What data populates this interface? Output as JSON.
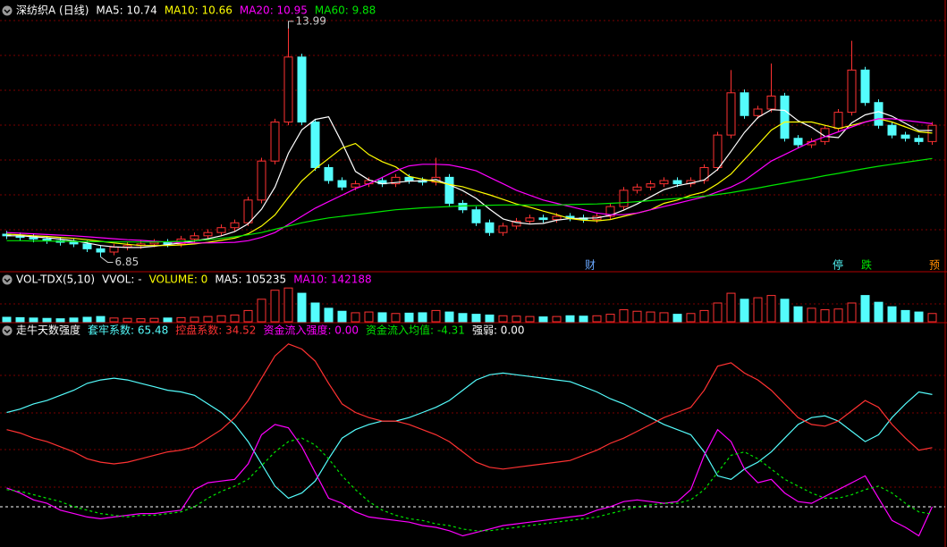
{
  "chart_data": [
    {
      "type": "candlestick",
      "title": "深纺织A (日线)",
      "open": [
        7.55,
        7.5,
        7.45,
        7.4,
        7.35,
        7.3,
        7.25,
        7.1,
        7.0,
        7.15,
        7.2,
        7.25,
        7.3,
        7.25,
        7.4,
        7.5,
        7.6,
        7.75,
        7.9,
        8.6,
        9.8,
        11.0,
        13.0,
        11.0,
        9.6,
        9.2,
        9.0,
        9.1,
        9.2,
        9.1,
        9.3,
        9.2,
        9.15,
        9.3,
        8.5,
        8.3,
        7.9,
        7.6,
        7.8,
        7.95,
        8.05,
        8.0,
        8.1,
        8.05,
        8.0,
        8.1,
        8.4,
        8.9,
        9.0,
        9.1,
        9.2,
        9.1,
        9.2,
        9.6,
        10.6,
        11.9,
        11.2,
        11.4,
        11.8,
        10.5,
        10.3,
        10.4,
        10.8,
        11.3,
        12.6,
        11.6,
        10.9,
        10.6,
        10.5,
        10.4
      ],
      "high": [
        7.65,
        7.6,
        7.55,
        7.5,
        7.45,
        7.4,
        7.35,
        7.2,
        7.25,
        7.3,
        7.35,
        7.4,
        7.4,
        7.5,
        7.6,
        7.7,
        7.85,
        8.0,
        8.7,
        9.9,
        11.1,
        13.99,
        13.1,
        11.1,
        9.7,
        9.3,
        9.2,
        9.3,
        9.3,
        9.4,
        9.4,
        9.3,
        9.9,
        9.4,
        8.6,
        8.4,
        8.0,
        7.9,
        8.05,
        8.15,
        8.15,
        8.2,
        8.2,
        8.15,
        8.2,
        8.5,
        9.0,
        9.1,
        9.2,
        9.3,
        9.3,
        9.3,
        9.7,
        10.7,
        12.6,
        12.0,
        11.5,
        12.8,
        11.9,
        10.6,
        10.5,
        10.9,
        11.4,
        13.5,
        12.7,
        11.7,
        11.0,
        10.7,
        10.6,
        11.0
      ],
      "low": [
        7.4,
        7.35,
        7.3,
        7.25,
        7.2,
        7.15,
        7.0,
        6.85,
        6.9,
        7.05,
        7.1,
        7.15,
        7.15,
        7.15,
        7.3,
        7.4,
        7.5,
        7.65,
        7.8,
        8.5,
        9.7,
        10.9,
        10.9,
        9.5,
        9.1,
        8.9,
        8.9,
        9.0,
        9.0,
        9.0,
        9.1,
        9.05,
        9.05,
        8.4,
        8.2,
        7.8,
        7.5,
        7.5,
        7.7,
        7.85,
        7.9,
        7.9,
        7.95,
        7.9,
        7.9,
        8.0,
        8.3,
        8.8,
        8.9,
        9.0,
        9.0,
        9.0,
        9.1,
        9.5,
        10.5,
        11.1,
        11.1,
        11.3,
        10.4,
        10.2,
        10.2,
        10.3,
        10.7,
        11.2,
        11.5,
        10.8,
        10.5,
        10.4,
        10.3,
        10.3
      ],
      "close": [
        7.5,
        7.45,
        7.4,
        7.35,
        7.3,
        7.25,
        7.1,
        7.0,
        7.15,
        7.2,
        7.25,
        7.3,
        7.25,
        7.4,
        7.5,
        7.6,
        7.75,
        7.9,
        8.6,
        9.8,
        11.0,
        13.0,
        11.0,
        9.6,
        9.2,
        9.0,
        9.1,
        9.2,
        9.1,
        9.3,
        9.2,
        9.15,
        9.3,
        8.5,
        8.3,
        7.9,
        7.6,
        7.8,
        7.95,
        8.05,
        8.0,
        8.1,
        8.05,
        8.0,
        8.1,
        8.4,
        8.9,
        9.0,
        9.1,
        9.2,
        9.1,
        9.2,
        9.6,
        10.6,
        11.9,
        11.2,
        11.4,
        11.8,
        10.5,
        10.3,
        10.4,
        10.8,
        11.3,
        12.6,
        11.6,
        10.9,
        10.6,
        10.5,
        10.4,
        10.9
      ],
      "up_color": "#ff3232",
      "down_color": "#54fcfc",
      "series": [
        {
          "name": "MA5: 10.74",
          "color": "#ffffff",
          "values": [
            7.5,
            7.5,
            7.47,
            7.44,
            7.4,
            7.35,
            7.28,
            7.2,
            7.16,
            7.14,
            7.14,
            7.18,
            7.23,
            7.28,
            7.34,
            7.41,
            7.5,
            7.63,
            7.87,
            8.32,
            9.0,
            10.04,
            10.76,
            11.08,
            11.16,
            10.36,
            9.48,
            9.22,
            9.1,
            9.14,
            9.18,
            9.19,
            9.23,
            9.07,
            8.89,
            8.65,
            8.32,
            8.02,
            7.91,
            7.86,
            7.88,
            7.98,
            8.03,
            8.04,
            8.05,
            8.13,
            8.29,
            8.48,
            8.7,
            8.92,
            9.04,
            9.12,
            9.22,
            9.54,
            10.1,
            10.68,
            11.14,
            11.38,
            11.36,
            11.04,
            10.84,
            10.56,
            10.52,
            10.98,
            11.22,
            11.32,
            11.18,
            10.96,
            10.74,
            10.74
          ]
        },
        {
          "name": "MA10: 10.66",
          "color": "#ffff00",
          "values": [
            7.55,
            7.53,
            7.5,
            7.48,
            7.45,
            7.42,
            7.38,
            7.33,
            7.28,
            7.24,
            7.2,
            7.2,
            7.2,
            7.22,
            7.25,
            7.3,
            7.36,
            7.43,
            7.56,
            7.8,
            8.14,
            8.68,
            9.19,
            9.56,
            9.88,
            10.2,
            10.34,
            10.0,
            9.78,
            9.62,
            9.33,
            9.24,
            9.17,
            9.08,
            9.01,
            8.88,
            8.76,
            8.62,
            8.48,
            8.38,
            8.26,
            8.15,
            8.03,
            7.98,
            7.96,
            8.0,
            8.1,
            8.2,
            8.3,
            8.5,
            8.6,
            8.75,
            8.85,
            9.1,
            9.4,
            9.85,
            10.3,
            10.75,
            11.0,
            11.0,
            11.0,
            10.9,
            10.8,
            10.9,
            11.0,
            11.1,
            11.0,
            10.85,
            10.7,
            10.66
          ]
        },
        {
          "name": "MA20: 10.95",
          "color": "#ff00ff",
          "values": [
            7.6,
            7.58,
            7.56,
            7.54,
            7.52,
            7.5,
            7.47,
            7.44,
            7.41,
            7.38,
            7.36,
            7.33,
            7.31,
            7.29,
            7.28,
            7.28,
            7.29,
            7.3,
            7.35,
            7.45,
            7.6,
            7.85,
            8.1,
            8.35,
            8.55,
            8.75,
            8.95,
            9.1,
            9.3,
            9.5,
            9.65,
            9.7,
            9.7,
            9.68,
            9.6,
            9.5,
            9.3,
            9.1,
            8.9,
            8.75,
            8.6,
            8.5,
            8.4,
            8.3,
            8.2,
            8.15,
            8.15,
            8.2,
            8.3,
            8.4,
            8.5,
            8.6,
            8.7,
            8.85,
            9.0,
            9.2,
            9.5,
            9.8,
            10.0,
            10.2,
            10.4,
            10.55,
            10.7,
            10.85,
            11.0,
            11.1,
            11.1,
            11.05,
            11.0,
            10.95
          ]
        },
        {
          "name": "MA60: 9.88",
          "color": "#00e600",
          "values": [
            7.35,
            7.35,
            7.34,
            7.34,
            7.33,
            7.33,
            7.32,
            7.32,
            7.31,
            7.31,
            7.31,
            7.31,
            7.32,
            7.33,
            7.35,
            7.38,
            7.42,
            7.47,
            7.53,
            7.6,
            7.7,
            7.8,
            7.9,
            7.98,
            8.05,
            8.1,
            8.15,
            8.2,
            8.25,
            8.3,
            8.33,
            8.36,
            8.38,
            8.4,
            8.42,
            8.43,
            8.44,
            8.45,
            8.45,
            8.45,
            8.45,
            8.45,
            8.46,
            8.47,
            8.48,
            8.5,
            8.52,
            8.55,
            8.58,
            8.62,
            8.65,
            8.68,
            8.72,
            8.77,
            8.83,
            8.9,
            8.97,
            9.05,
            9.12,
            9.2,
            9.27,
            9.35,
            9.42,
            9.5,
            9.57,
            9.64,
            9.7,
            9.76,
            9.82,
            9.88
          ]
        }
      ],
      "ylim": [
        6.45,
        14.7
      ],
      "annotations": [
        {
          "text": "13.99",
          "value": 13.99,
          "at": "high"
        },
        {
          "text": "6.85",
          "value": 6.85,
          "at": "low"
        }
      ],
      "markers": [
        "财",
        "停",
        "跌",
        "预"
      ]
    },
    {
      "type": "volume",
      "title": "VOL-TDX(5,10)",
      "legend": [
        "VVOL: -",
        "VOLUME: 0",
        "MA5: 105235",
        "MA10: 142188"
      ],
      "legend_colors": [
        "#ffffff",
        "#ffff00",
        "#ffffff",
        "#ff00ff"
      ],
      "values": [
        60000,
        55000,
        50000,
        45000,
        40000,
        50000,
        60000,
        70000,
        50000,
        45000,
        40000,
        45000,
        50000,
        55000,
        60000,
        70000,
        80000,
        90000,
        150000,
        300000,
        420000,
        450000,
        380000,
        250000,
        180000,
        140000,
        120000,
        130000,
        120000,
        110000,
        115000,
        120000,
        150000,
        130000,
        110000,
        100000,
        90000,
        80000,
        75000,
        70000,
        65000,
        70000,
        80000,
        75000,
        80000,
        100000,
        160000,
        140000,
        130000,
        120000,
        100000,
        110000,
        150000,
        250000,
        380000,
        300000,
        320000,
        350000,
        300000,
        200000,
        180000,
        160000,
        170000,
        250000,
        350000,
        260000,
        200000,
        150000,
        130000,
        110000
      ],
      "ylim": [
        0,
        500000
      ]
    },
    {
      "type": "line",
      "title": "走牛天数强度",
      "series": [
        {
          "name": "套牢系数: 65.48",
          "color": "#54fcfc",
          "values": [
            55,
            57,
            60,
            62,
            65,
            68,
            72,
            74,
            75,
            74,
            72,
            70,
            68,
            67,
            65,
            60,
            55,
            48,
            38,
            25,
            12,
            5,
            8,
            15,
            28,
            40,
            45,
            48,
            50,
            50,
            52,
            55,
            58,
            62,
            68,
            74,
            77,
            78,
            77,
            76,
            75,
            74,
            73,
            70,
            67,
            63,
            60,
            56,
            52,
            48,
            45,
            42,
            32,
            18,
            16,
            22,
            26,
            32,
            40,
            48,
            52,
            53,
            50,
            44,
            38,
            42,
            52,
            60,
            67,
            65.48
          ]
        },
        {
          "name": "控盘系数: 34.52",
          "color": "#ff3232",
          "values": [
            45,
            43,
            40,
            38,
            35,
            32,
            28,
            26,
            25,
            26,
            28,
            30,
            32,
            33,
            35,
            40,
            45,
            52,
            62,
            75,
            88,
            95,
            92,
            85,
            72,
            60,
            55,
            52,
            50,
            50,
            48,
            45,
            42,
            38,
            32,
            26,
            23,
            22,
            23,
            24,
            25,
            26,
            27,
            30,
            33,
            37,
            40,
            44,
            48,
            52,
            55,
            58,
            68,
            82,
            84,
            78,
            74,
            68,
            60,
            52,
            48,
            47,
            50,
            56,
            62,
            58,
            48,
            40,
            33,
            34.52
          ]
        },
        {
          "name": "资金流入强度: 0.00",
          "color": "#ff00ff",
          "values": [
            11,
            8,
            4,
            2,
            -2,
            -4,
            -6,
            -7,
            -6,
            -5,
            -4,
            -4,
            -3,
            -2,
            10,
            14,
            15,
            16,
            25,
            42,
            48,
            46,
            35,
            20,
            5,
            2,
            -3,
            -6,
            -7,
            -8,
            -9,
            -11,
            -12,
            -14,
            -17,
            -15,
            -13,
            -11,
            -10,
            -9,
            -8,
            -7,
            -6,
            -5,
            -2,
            0,
            3,
            4,
            3,
            2,
            3,
            10,
            30,
            45,
            38,
            22,
            14,
            16,
            8,
            3,
            2,
            6,
            10,
            14,
            18,
            5,
            -8,
            -12,
            -17,
            0
          ]
        },
        {
          "name": "资金流入均值: -4.31",
          "color": "#00e600",
          "dashed": true,
          "values": [
            10,
            9,
            7,
            5,
            3,
            0,
            -2,
            -4,
            -5,
            -6,
            -5,
            -5,
            -4,
            -3,
            0,
            5,
            9,
            12,
            16,
            24,
            32,
            38,
            40,
            36,
            28,
            18,
            10,
            3,
            -2,
            -5,
            -7,
            -8,
            -10,
            -11,
            -13,
            -14,
            -14,
            -13,
            -12,
            -11,
            -10,
            -9,
            -8,
            -7,
            -6,
            -4,
            -2,
            0,
            1,
            2,
            2,
            4,
            10,
            20,
            30,
            32,
            28,
            22,
            16,
            12,
            8,
            5,
            5,
            7,
            10,
            12,
            8,
            2,
            -3,
            -4.31
          ]
        }
      ],
      "extra_legend": [
        "强弱: 0.00"
      ],
      "hline": 0,
      "ylim": [
        -23.5,
        97.5
      ]
    }
  ]
}
